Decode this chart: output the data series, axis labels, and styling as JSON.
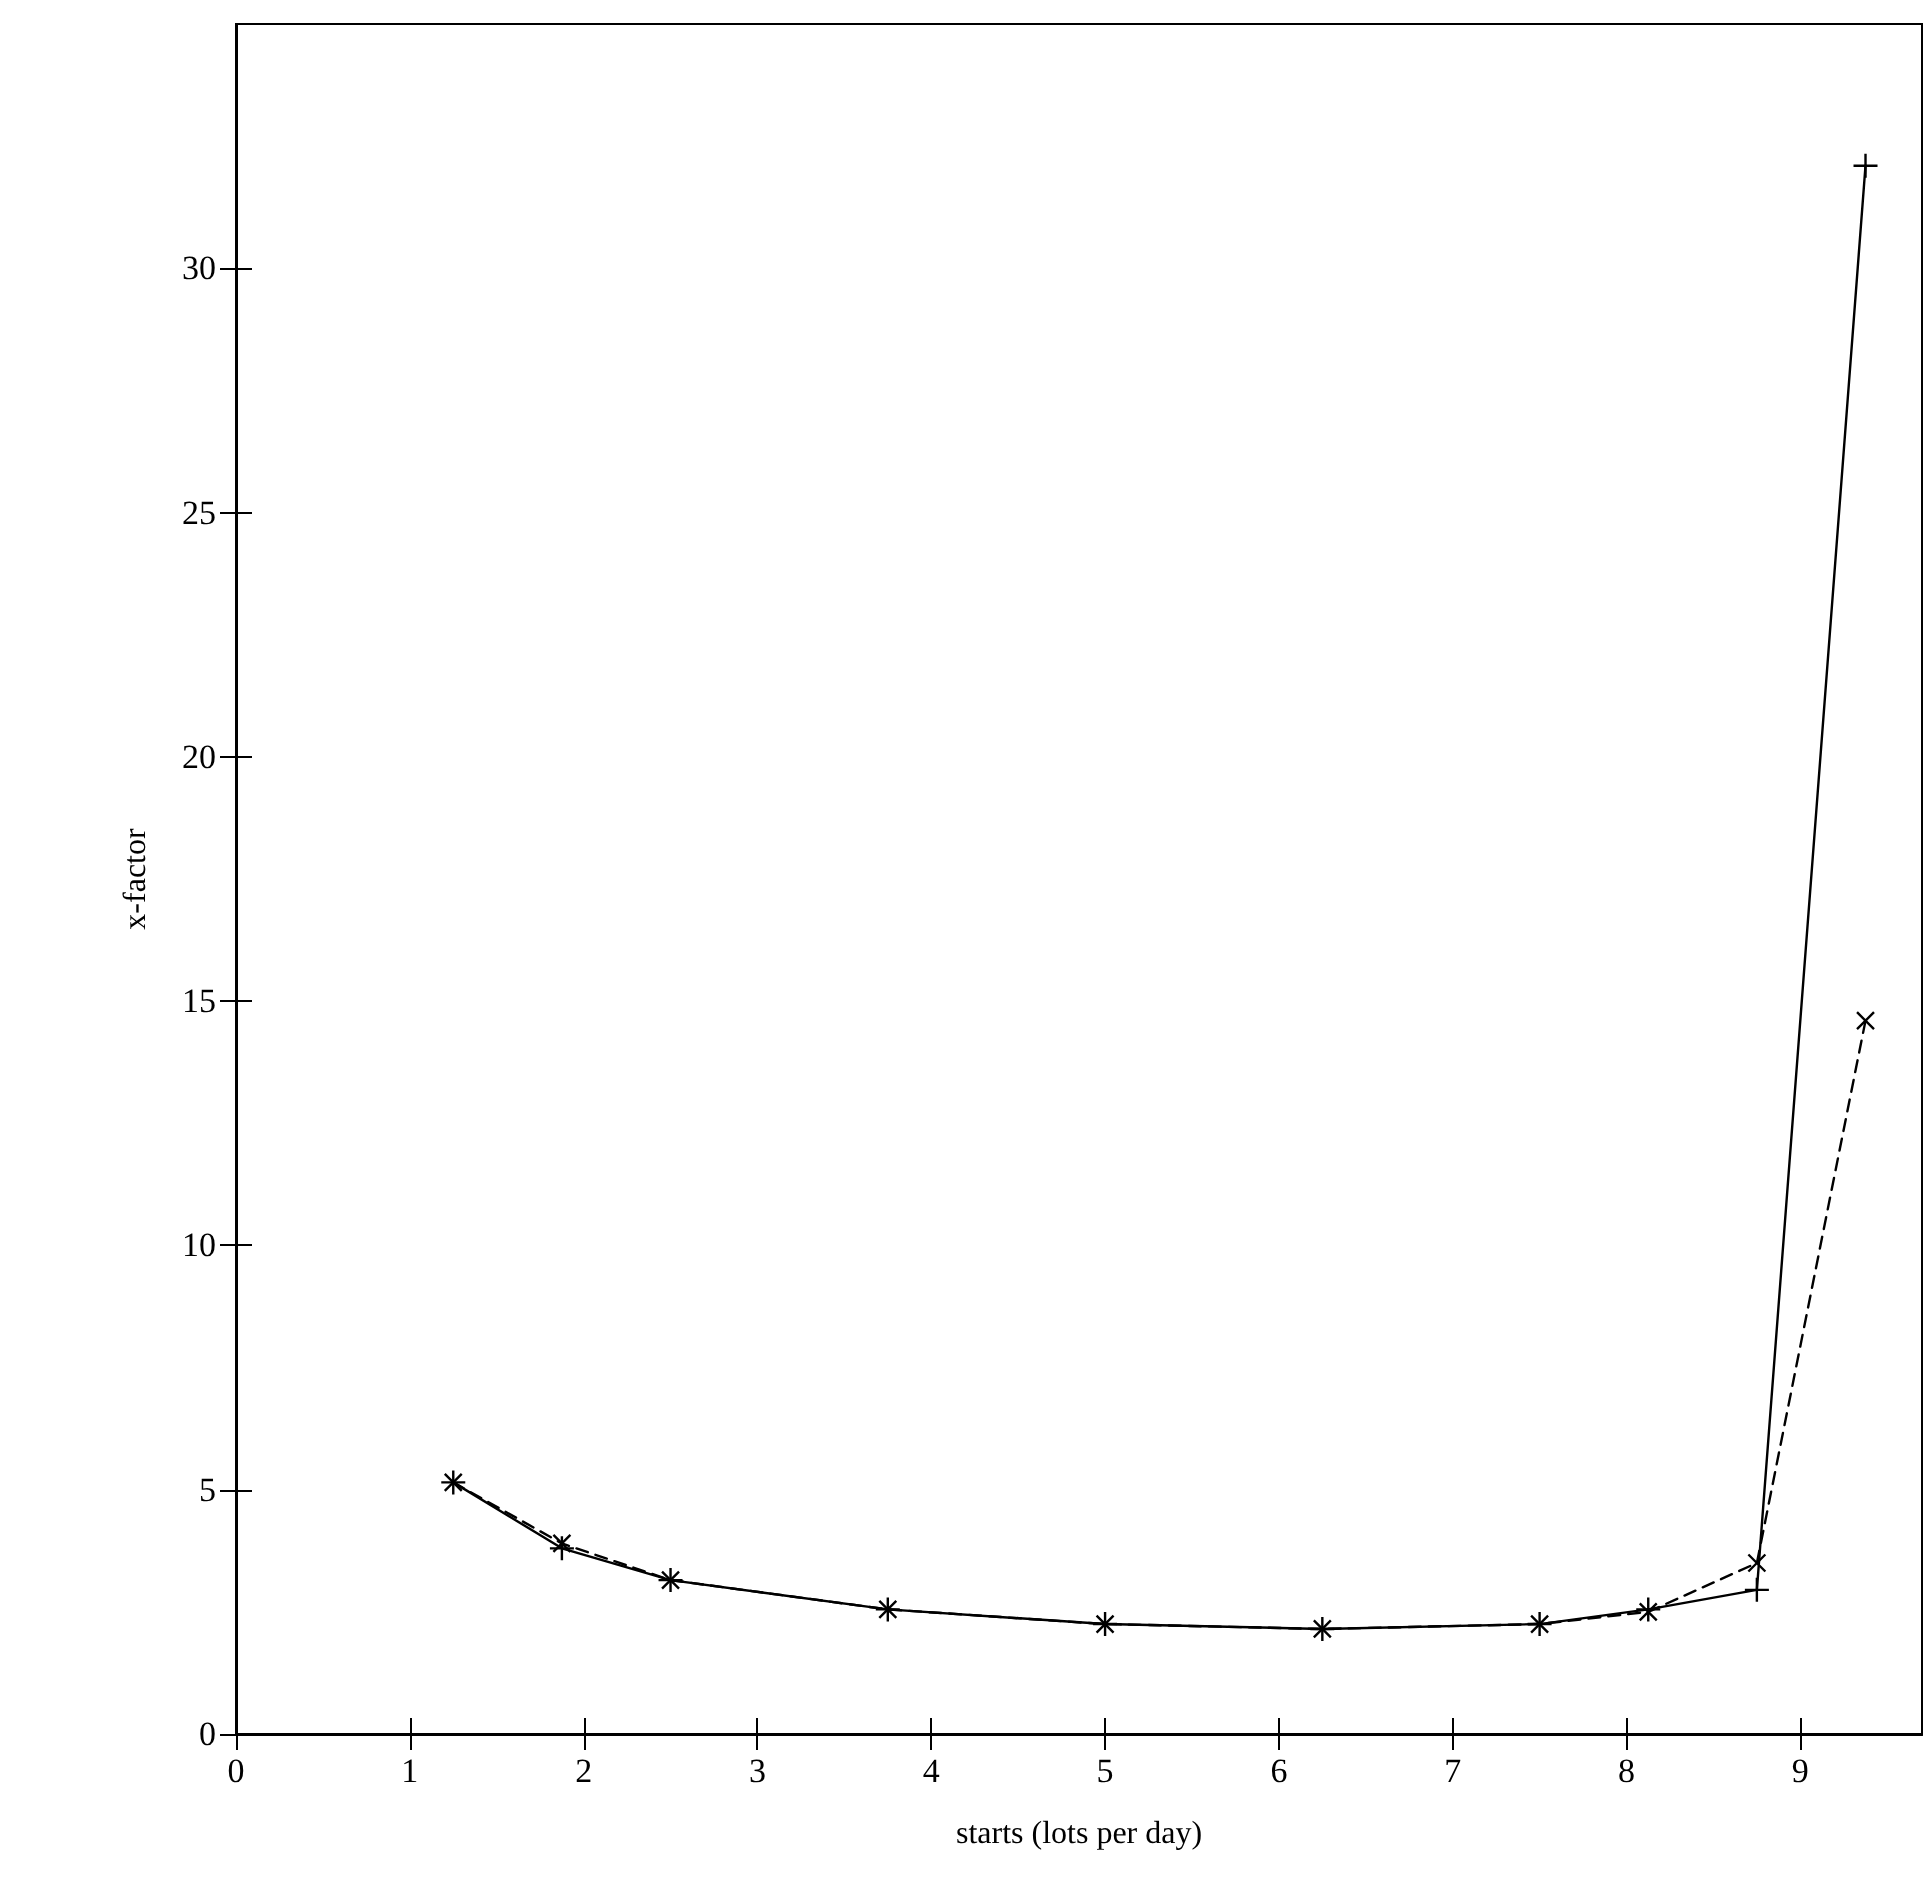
{
  "chart_data": {
    "type": "line",
    "xlabel": "starts (lots per day)",
    "ylabel": "x-factor",
    "x": [
      1.25,
      1.875,
      2.5,
      3.75,
      5,
      6.25,
      7.5,
      8.125,
      8.75,
      9.375
    ],
    "series": [
      {
        "color": "#000000",
        "line_style": "solid",
        "marker": "cross",
        "values": [
          5.15,
          3.8,
          3.15,
          2.55,
          2.25,
          2.15,
          2.25,
          2.55,
          2.95,
          32.1
        ]
      },
      {
        "color": "#000000",
        "line_style": "dashed",
        "marker": "cross",
        "values": [
          5.15,
          3.9,
          3.15,
          2.55,
          2.25,
          2.15,
          2.25,
          2.5,
          3.5,
          14.6
        ]
      }
    ],
    "xlim": [
      0,
      9.7
    ],
    "xticks": [
      0,
      1,
      2,
      3,
      4,
      5,
      6,
      7,
      8,
      9
    ],
    "ylim": [
      0,
      35
    ],
    "yticks": [
      0,
      5,
      10,
      15,
      20,
      25,
      30
    ],
    "grid": false
  }
}
